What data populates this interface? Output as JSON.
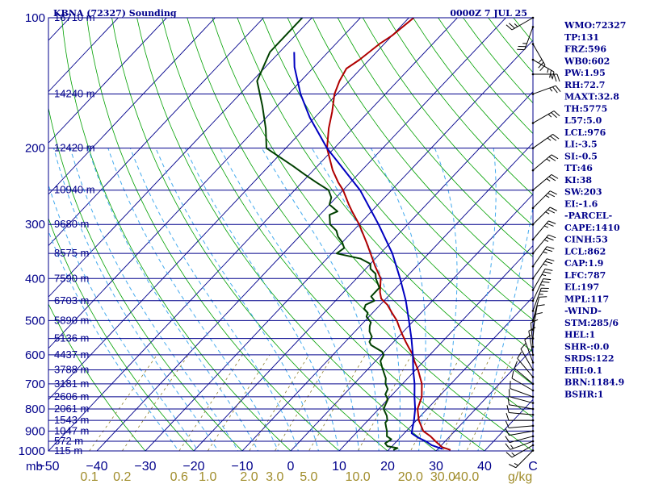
{
  "header": {
    "title": "KBNA (72327) Sounding",
    "valid_time": "0000Z  7 JUL 25"
  },
  "indices": [
    "WMO:72327",
    "TP:131",
    "FRZ:596",
    "WB0:602",
    "PW:1.95",
    "RH:72.7",
    "MAXT:32.8",
    "TH:5775",
    "L57:5.0",
    "LCL:976",
    "LI:-3.5",
    "SI:-0.5",
    "TT:46",
    "KI:38",
    "SW:203",
    "EI:-1.6",
    "-PARCEL-",
    "CAPE:1410",
    "CINH:53",
    "LCL:862",
    "CAP:1.9",
    "LFC:787",
    "EL:197",
    "MPL:117",
    "-WIND-",
    "STM:285/6",
    "HEL:1",
    "SHR-:0.0",
    "SRDS:122",
    "EHI:0.1",
    "BRN:1184.9",
    "BSHR:1"
  ],
  "colors": {
    "axis": "#00008b",
    "isotherm": "#00008b",
    "isobar": "#00008b",
    "dry_adiabat": "#00a000",
    "moist_adiabat": "#44aaee",
    "mixing_ratio": "#8b7d2a",
    "temperature": "#b00000",
    "dewpoint": "#004000",
    "parcel": "#0000c0",
    "wind": "#000000",
    "mixing_label": "#a08c2a"
  },
  "chart_data": {
    "type": "line",
    "title": "KBNA (72327) Sounding",
    "xlabel": "°C",
    "ylabel": "mb",
    "xlim": [
      -50,
      50
    ],
    "ylim": [
      1000,
      100
    ],
    "pressure_ticks": [
      {
        "p": 100,
        "label": "100"
      },
      {
        "p": 200,
        "label": "200"
      },
      {
        "p": 300,
        "label": "300"
      },
      {
        "p": 400,
        "label": "400"
      },
      {
        "p": 500,
        "label": "500"
      },
      {
        "p": 600,
        "label": "600"
      },
      {
        "p": 700,
        "label": "700"
      },
      {
        "p": 800,
        "label": "800"
      },
      {
        "p": 900,
        "label": "900"
      },
      {
        "p": 1000,
        "label": "1000"
      }
    ],
    "height_labels": [
      {
        "p": 100,
        "label": "16710 m"
      },
      {
        "p": 150,
        "label": "14240 m"
      },
      {
        "p": 200,
        "label": "12420 m"
      },
      {
        "p": 250,
        "label": "10940 m"
      },
      {
        "p": 300,
        "label": "9680 m"
      },
      {
        "p": 350,
        "label": "8575 m"
      },
      {
        "p": 400,
        "label": "7590 m"
      },
      {
        "p": 450,
        "label": "6703 m"
      },
      {
        "p": 500,
        "label": "5890 m"
      },
      {
        "p": 550,
        "label": "5136 m"
      },
      {
        "p": 600,
        "label": "4437 m"
      },
      {
        "p": 650,
        "label": "3788 m"
      },
      {
        "p": 700,
        "label": "3181 m"
      },
      {
        "p": 750,
        "label": "2606 m"
      },
      {
        "p": 800,
        "label": "2061 m"
      },
      {
        "p": 850,
        "label": "1543 m"
      },
      {
        "p": 900,
        "label": "1047 m"
      },
      {
        "p": 950,
        "label": "572 m"
      },
      {
        "p": 1000,
        "label": "115 m"
      }
    ],
    "temp_ticks": [
      {
        "t": -50,
        "label": "−50"
      },
      {
        "t": -40,
        "label": "−40"
      },
      {
        "t": -30,
        "label": "−30"
      },
      {
        "t": -20,
        "label": "−20"
      },
      {
        "t": -10,
        "label": "−10"
      },
      {
        "t": 0,
        "label": "0"
      },
      {
        "t": 10,
        "label": "10"
      },
      {
        "t": 20,
        "label": "20"
      },
      {
        "t": 30,
        "label": "30"
      },
      {
        "t": 40,
        "label": "40"
      },
      {
        "t": 50,
        "label": "C"
      }
    ],
    "mixing_ratio_ticks": [
      {
        "w": 0.1,
        "label": "0.1"
      },
      {
        "w": 0.2,
        "label": "0.2"
      },
      {
        "w": 0.6,
        "label": "0.6"
      },
      {
        "w": 1.0,
        "label": "1.0"
      },
      {
        "w": 2.0,
        "label": "2.0"
      },
      {
        "w": 3.0,
        "label": "3.0"
      },
      {
        "w": 5.0,
        "label": "5.0"
      },
      {
        "w": 10.0,
        "label": "10.0"
      },
      {
        "w": 20.0,
        "label": "20.0"
      },
      {
        "w": 30.0,
        "label": "30.0"
      },
      {
        "w": 40.0,
        "label": "40.0"
      }
    ],
    "mixing_ratio_unit": "g/kg",
    "pressure_unit": "mb",
    "series": [
      {
        "key": "temperature",
        "points": [
          [
            995,
            32.8
          ],
          [
            980,
            30.5
          ],
          [
            950,
            28
          ],
          [
            925,
            26
          ],
          [
            900,
            23.5
          ],
          [
            850,
            20.5
          ],
          [
            800,
            18
          ],
          [
            750,
            16.5
          ],
          [
            700,
            14
          ],
          [
            650,
            10.5
          ],
          [
            620,
            8
          ],
          [
            600,
            6.5
          ],
          [
            580,
            4.5
          ],
          [
            560,
            2.5
          ],
          [
            540,
            0.5
          ],
          [
            520,
            -1.5
          ],
          [
            500,
            -3.5
          ],
          [
            480,
            -6
          ],
          [
            460,
            -8.5
          ],
          [
            445,
            -11
          ],
          [
            430,
            -12.5
          ],
          [
            400,
            -15
          ],
          [
            375,
            -18.5
          ],
          [
            350,
            -22
          ],
          [
            330,
            -25
          ],
          [
            300,
            -30
          ],
          [
            280,
            -34
          ],
          [
            270,
            -36
          ],
          [
            250,
            -40
          ],
          [
            240,
            -42.5
          ],
          [
            225,
            -46
          ],
          [
            200,
            -51.5
          ],
          [
            180,
            -55
          ],
          [
            165,
            -57.5
          ],
          [
            150,
            -60.5
          ],
          [
            140,
            -62
          ],
          [
            131,
            -63
          ],
          [
            125,
            -62
          ],
          [
            115,
            -61
          ],
          [
            110,
            -60
          ],
          [
            100,
            -59
          ]
        ]
      },
      {
        "key": "dewpoint",
        "points": [
          [
            995,
            21
          ],
          [
            985,
            21.5
          ],
          [
            975,
            19
          ],
          [
            960,
            18
          ],
          [
            940,
            18.5
          ],
          [
            925,
            17
          ],
          [
            900,
            16
          ],
          [
            880,
            15
          ],
          [
            860,
            14
          ],
          [
            850,
            14
          ],
          [
            830,
            13
          ],
          [
            800,
            11
          ],
          [
            780,
            10.5
          ],
          [
            760,
            10
          ],
          [
            740,
            8.5
          ],
          [
            720,
            8
          ],
          [
            700,
            6.5
          ],
          [
            680,
            5.5
          ],
          [
            660,
            4
          ],
          [
            640,
            2.5
          ],
          [
            620,
            1
          ],
          [
            600,
            0.5
          ],
          [
            590,
            -0.5
          ],
          [
            570,
            -4
          ],
          [
            560,
            -5
          ],
          [
            545,
            -5.5
          ],
          [
            530,
            -7
          ],
          [
            515,
            -8
          ],
          [
            505,
            -8.5
          ],
          [
            490,
            -10.5
          ],
          [
            480,
            -11
          ],
          [
            470,
            -12.5
          ],
          [
            460,
            -13
          ],
          [
            450,
            -12
          ],
          [
            440,
            -13.5
          ],
          [
            430,
            -13.5
          ],
          [
            420,
            -13.5
          ],
          [
            400,
            -16
          ],
          [
            390,
            -17
          ],
          [
            380,
            -19
          ],
          [
            370,
            -20
          ],
          [
            360,
            -23
          ],
          [
            350,
            -29
          ],
          [
            340,
            -28.5
          ],
          [
            330,
            -30
          ],
          [
            320,
            -32
          ],
          [
            310,
            -33.5
          ],
          [
            300,
            -36
          ],
          [
            285,
            -38
          ],
          [
            280,
            -37
          ],
          [
            270,
            -40
          ],
          [
            260,
            -41
          ],
          [
            250,
            -43
          ],
          [
            240,
            -47
          ],
          [
            230,
            -51
          ],
          [
            220,
            -55
          ],
          [
            200,
            -64
          ],
          [
            180,
            -68
          ],
          [
            160,
            -73
          ],
          [
            140,
            -79
          ],
          [
            120,
            -82
          ],
          [
            110,
            -82
          ],
          [
            100,
            -82
          ]
        ]
      },
      {
        "key": "parcel",
        "points": [
          [
            990,
            31
          ],
          [
            970,
            28
          ],
          [
            950,
            26
          ],
          [
            930,
            23.5
          ],
          [
            910,
            21.5
          ],
          [
            880,
            20.5
          ],
          [
            850,
            19.5
          ],
          [
            800,
            17.5
          ],
          [
            750,
            15
          ],
          [
            700,
            12.5
          ],
          [
            650,
            9.5
          ],
          [
            600,
            6.5
          ],
          [
            550,
            3
          ],
          [
            500,
            -1
          ],
          [
            450,
            -5.5
          ],
          [
            400,
            -11
          ],
          [
            350,
            -17.5
          ],
          [
            300,
            -26
          ],
          [
            250,
            -36.5
          ],
          [
            200,
            -51.5
          ],
          [
            170,
            -61
          ],
          [
            150,
            -67.5
          ],
          [
            130,
            -74
          ],
          [
            120,
            -77
          ]
        ]
      }
    ],
    "wind_barbs": [
      {
        "p": 998,
        "dir": 225,
        "spd": 5
      },
      {
        "p": 970,
        "dir": 240,
        "spd": 5
      },
      {
        "p": 950,
        "dir": 250,
        "spd": 5
      },
      {
        "p": 925,
        "dir": 255,
        "spd": 10
      },
      {
        "p": 900,
        "dir": 260,
        "spd": 10
      },
      {
        "p": 875,
        "dir": 265,
        "spd": 10
      },
      {
        "p": 850,
        "dir": 270,
        "spd": 10
      },
      {
        "p": 825,
        "dir": 275,
        "spd": 10
      },
      {
        "p": 800,
        "dir": 280,
        "spd": 10
      },
      {
        "p": 775,
        "dir": 285,
        "spd": 10
      },
      {
        "p": 750,
        "dir": 290,
        "spd": 10
      },
      {
        "p": 725,
        "dir": 300,
        "spd": 10
      },
      {
        "p": 700,
        "dir": 310,
        "spd": 10
      },
      {
        "p": 675,
        "dir": 320,
        "spd": 10
      },
      {
        "p": 650,
        "dir": 330,
        "spd": 10
      },
      {
        "p": 625,
        "dir": 340,
        "spd": 10
      },
      {
        "p": 600,
        "dir": 350,
        "spd": 10
      },
      {
        "p": 575,
        "dir": 355,
        "spd": 10
      },
      {
        "p": 550,
        "dir": 5,
        "spd": 10
      },
      {
        "p": 525,
        "dir": 10,
        "spd": 10
      },
      {
        "p": 500,
        "dir": 15,
        "spd": 10
      },
      {
        "p": 475,
        "dir": 20,
        "spd": 15
      },
      {
        "p": 450,
        "dir": 25,
        "spd": 15
      },
      {
        "p": 425,
        "dir": 30,
        "spd": 15
      },
      {
        "p": 400,
        "dir": 35,
        "spd": 15
      },
      {
        "p": 375,
        "dir": 35,
        "spd": 15
      },
      {
        "p": 350,
        "dir": 40,
        "spd": 15
      },
      {
        "p": 325,
        "dir": 40,
        "spd": 15
      },
      {
        "p": 300,
        "dir": 45,
        "spd": 15
      },
      {
        "p": 275,
        "dir": 45,
        "spd": 15
      },
      {
        "p": 250,
        "dir": 50,
        "spd": 15
      },
      {
        "p": 225,
        "dir": 50,
        "spd": 15
      },
      {
        "p": 200,
        "dir": 55,
        "spd": 15
      },
      {
        "p": 175,
        "dir": 60,
        "spd": 15
      },
      {
        "p": 150,
        "dir": 70,
        "spd": 15
      },
      {
        "p": 135,
        "dir": 90,
        "spd": 15
      },
      {
        "p": 125,
        "dir": 120,
        "spd": 15
      },
      {
        "p": 115,
        "dir": 150,
        "spd": 15
      },
      {
        "p": 105,
        "dir": 200,
        "spd": 15
      },
      {
        "p": 100,
        "dir": 240,
        "spd": 15
      }
    ]
  }
}
